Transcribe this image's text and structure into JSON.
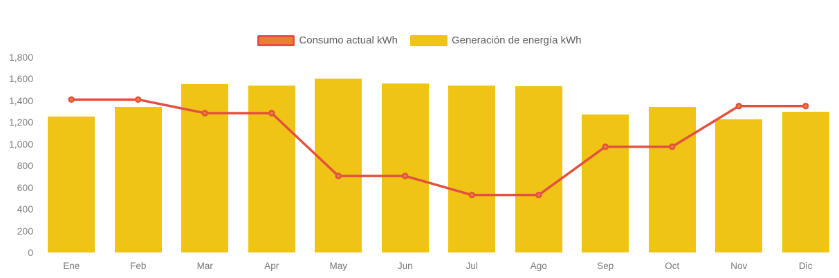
{
  "legend": {
    "items": [
      {
        "id": "consumo",
        "label": "Consumo actual kWh"
      },
      {
        "id": "generacion",
        "label": "Generación de energía kWh"
      }
    ]
  },
  "axes": {
    "y_tick_labels": [
      "0",
      "200",
      "400",
      "600",
      "800",
      "1,000",
      "1,200",
      "1,400",
      "1,600",
      "1,800"
    ],
    "y_tick_step": 200
  },
  "chart_data": {
    "type": "bar+line",
    "title": "",
    "categories": [
      "Ene",
      "Feb",
      "Mar",
      "Apr",
      "May",
      "Jun",
      "Jul",
      "Ago",
      "Sep",
      "Oct",
      "Nov",
      "Dic"
    ],
    "series": [
      {
        "name": "Generación de energía kWh",
        "type": "bar",
        "color": "#EFC415",
        "values": [
          1255,
          1340,
          1555,
          1540,
          1605,
          1560,
          1540,
          1535,
          1275,
          1340,
          1225,
          1295
        ]
      },
      {
        "name": "Consumo actual kWh",
        "type": "line",
        "color": "#E2513F",
        "marker_fill": "#E8832C",
        "values": [
          1410,
          1410,
          1285,
          1285,
          705,
          705,
          530,
          530,
          975,
          975,
          1350,
          1350
        ]
      }
    ],
    "ylim": [
      0,
      1800
    ],
    "grid": false,
    "legend_position": "top-center"
  },
  "colors": {
    "bar": "#EFC415",
    "line": "#E2513F",
    "marker_fill": "#E8832C",
    "axis_label": "#7c7c7c",
    "legend_label": "#5d5d5d",
    "background": "#ffffff"
  }
}
